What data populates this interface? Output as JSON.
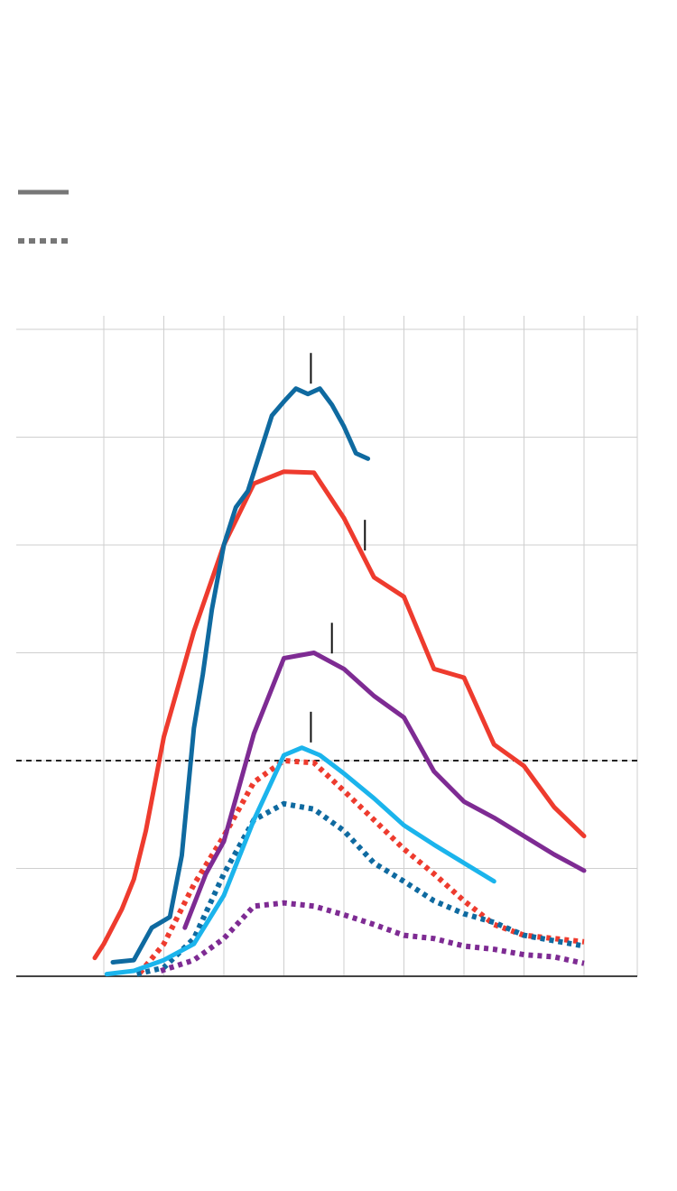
{
  "chart_data": {
    "type": "line",
    "title": "",
    "xlabel": "",
    "ylabel": "",
    "xlim": [
      -1.3,
      8.2
    ],
    "ylim": [
      0,
      6
    ],
    "x_gridlines": [
      0,
      1,
      2,
      3,
      4,
      5,
      6,
      7,
      8
    ],
    "y_gridlines": [
      0,
      1,
      2,
      3,
      4,
      5,
      6
    ],
    "reference_line": {
      "y": 2,
      "style": "dashed",
      "color": "#222222"
    },
    "grid": true,
    "legend": {
      "placement": "top-left",
      "entries": [
        {
          "style": "solid",
          "color": "#777777"
        },
        {
          "style": "dotted",
          "color": "#777777"
        }
      ]
    },
    "series": [
      {
        "id": "red-solid",
        "color": "#ee3b2e",
        "style": "solid",
        "x": [
          -0.15,
          0,
          0.3,
          0.5,
          0.7,
          1.0,
          1.5,
          2.0,
          2.5,
          3.0,
          3.5,
          4.0,
          4.5,
          5.0,
          5.5,
          6.0,
          6.5,
          7.0,
          7.5,
          8.0
        ],
        "y": [
          0.17,
          0.3,
          0.62,
          0.9,
          1.35,
          2.22,
          3.2,
          4.0,
          4.57,
          4.68,
          4.67,
          4.25,
          3.7,
          3.52,
          2.85,
          2.77,
          2.15,
          1.95,
          1.57,
          1.3
        ],
        "peak_marker_x": 4.35
      },
      {
        "id": "navy-solid",
        "color": "#0f6aa0",
        "style": "solid",
        "x": [
          0.15,
          0.5,
          0.8,
          1.1,
          1.3,
          1.5,
          1.65,
          1.8,
          2.0,
          2.2,
          2.4,
          2.8,
          3.0,
          3.2,
          3.4,
          3.6,
          3.8,
          4.0,
          4.2,
          4.4
        ],
        "y": [
          0.13,
          0.15,
          0.45,
          0.55,
          1.12,
          2.3,
          2.8,
          3.4,
          4.0,
          4.35,
          4.5,
          5.2,
          5.33,
          5.45,
          5.4,
          5.45,
          5.3,
          5.1,
          4.85,
          4.8
        ],
        "peak_marker_x": 3.45
      },
      {
        "id": "purple-solid",
        "color": "#7e2b93",
        "style": "solid",
        "x": [
          1.35,
          1.7,
          2.0,
          2.5,
          3.0,
          3.5,
          4.0,
          4.5,
          5.0,
          5.5,
          6.0,
          6.5,
          7.0,
          7.5,
          8.0
        ],
        "y": [
          0.45,
          0.95,
          1.25,
          2.25,
          2.95,
          3.0,
          2.85,
          2.6,
          2.4,
          1.9,
          1.62,
          1.47,
          1.3,
          1.13,
          0.98
        ],
        "peak_marker_x": 3.8
      },
      {
        "id": "cyan-solid",
        "color": "#1bb4ec",
        "style": "solid",
        "x": [
          0.05,
          0.5,
          1.0,
          1.5,
          2.0,
          2.5,
          3.0,
          3.3,
          3.6,
          4.0,
          4.5,
          5.0,
          5.5,
          6.0,
          6.5
        ],
        "y": [
          0.02,
          0.05,
          0.15,
          0.3,
          0.75,
          1.45,
          2.05,
          2.12,
          2.05,
          1.88,
          1.65,
          1.4,
          1.22,
          1.05,
          0.88
        ],
        "peak_marker_x": 3.45
      },
      {
        "id": "red-dotted",
        "color": "#ee3b2e",
        "style": "dotted",
        "x": [
          0.6,
          1.0,
          1.5,
          2.0,
          2.5,
          3.0,
          3.5,
          4.0,
          4.5,
          5.0,
          5.5,
          6.0,
          6.5,
          7.0,
          7.5,
          8.0
        ],
        "y": [
          0.03,
          0.3,
          0.85,
          1.3,
          1.8,
          2.0,
          1.98,
          1.72,
          1.45,
          1.18,
          0.95,
          0.7,
          0.48,
          0.38,
          0.35,
          0.32
        ]
      },
      {
        "id": "navy-dotted",
        "color": "#0f6aa0",
        "style": "dotted",
        "x": [
          0.55,
          1.0,
          1.5,
          2.0,
          2.5,
          3.0,
          3.5,
          4.0,
          4.5,
          5.0,
          5.5,
          6.0,
          6.5,
          7.0,
          7.5,
          8.0
        ],
        "y": [
          0.02,
          0.08,
          0.35,
          0.95,
          1.45,
          1.6,
          1.55,
          1.35,
          1.05,
          0.88,
          0.7,
          0.58,
          0.5,
          0.38,
          0.33,
          0.28
        ]
      },
      {
        "id": "purple-dotted",
        "color": "#7e2b93",
        "style": "dotted",
        "x": [
          0.95,
          1.5,
          2.0,
          2.5,
          3.0,
          3.5,
          4.0,
          4.5,
          5.0,
          5.5,
          6.0,
          6.5,
          7.0,
          7.5,
          8.0
        ],
        "y": [
          0.05,
          0.15,
          0.35,
          0.65,
          0.68,
          0.65,
          0.57,
          0.48,
          0.38,
          0.35,
          0.28,
          0.25,
          0.2,
          0.18,
          0.12
        ]
      }
    ]
  }
}
